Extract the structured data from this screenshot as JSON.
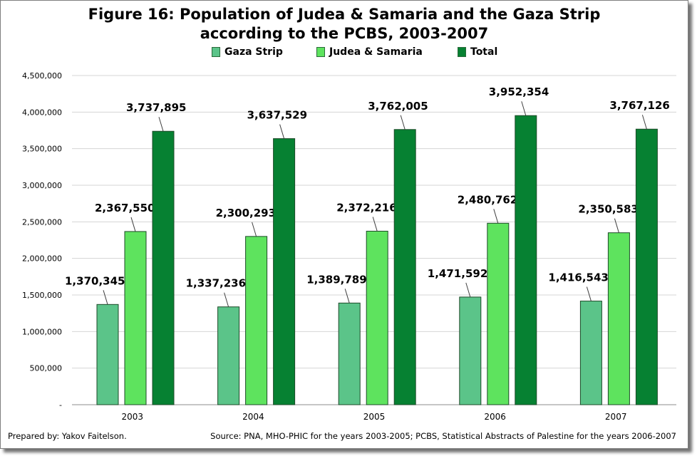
{
  "chart_data": {
    "type": "bar",
    "title": "Figure 16:  Population of Judea & Samaria and the Gaza Strip",
    "subtitle": "according to the PCBS, 2003-2007",
    "categories": [
      "2003",
      "2004",
      "2005",
      "2006",
      "2007"
    ],
    "series": [
      {
        "name": "Gaza Strip",
        "color": "#5bc489",
        "values": [
          1370345,
          1337236,
          1389789,
          1471592,
          1416543
        ]
      },
      {
        "name": "Judea & Samaria",
        "color": "#5ee35e",
        "values": [
          2367550,
          2300293,
          2372216,
          2480762,
          2350583
        ]
      },
      {
        "name": "Total",
        "color": "#068132",
        "values": [
          3737895,
          3637529,
          3762005,
          3952354,
          3767126
        ]
      }
    ],
    "data_labels": [
      [
        "1,370,345",
        "2,367,550",
        "3,737,895"
      ],
      [
        "1,337,236",
        "2,300,293",
        "3,637,529"
      ],
      [
        "1,389,789",
        "2,372,216",
        "3,762,005"
      ],
      [
        "1,471,592",
        "2,480,762",
        "3,952,354"
      ],
      [
        "1,416,543",
        "2,350,583",
        "3,767,126"
      ]
    ],
    "ylim": [
      0,
      4500000
    ],
    "yticks": [
      0,
      500000,
      1000000,
      1500000,
      2000000,
      2500000,
      3000000,
      3500000,
      4000000,
      4500000
    ],
    "ytick_labels": [
      "-",
      "500,000",
      "1,000,000",
      "1,500,000",
      "2,000,000",
      "2,500,000",
      "3,000,000",
      "3,500,000",
      "4,000,000",
      "4,500,000"
    ],
    "grid": true,
    "legend_position": "top",
    "xlabel": "",
    "ylabel": ""
  },
  "footer": {
    "prepared_by": "Prepared by: Yakov Faitelson.",
    "source": "Source: PNA, MHO-PHIC for the years 2003-2005;  PCBS, Statistical Abstracts of Palestine for the years 2006-2007"
  }
}
